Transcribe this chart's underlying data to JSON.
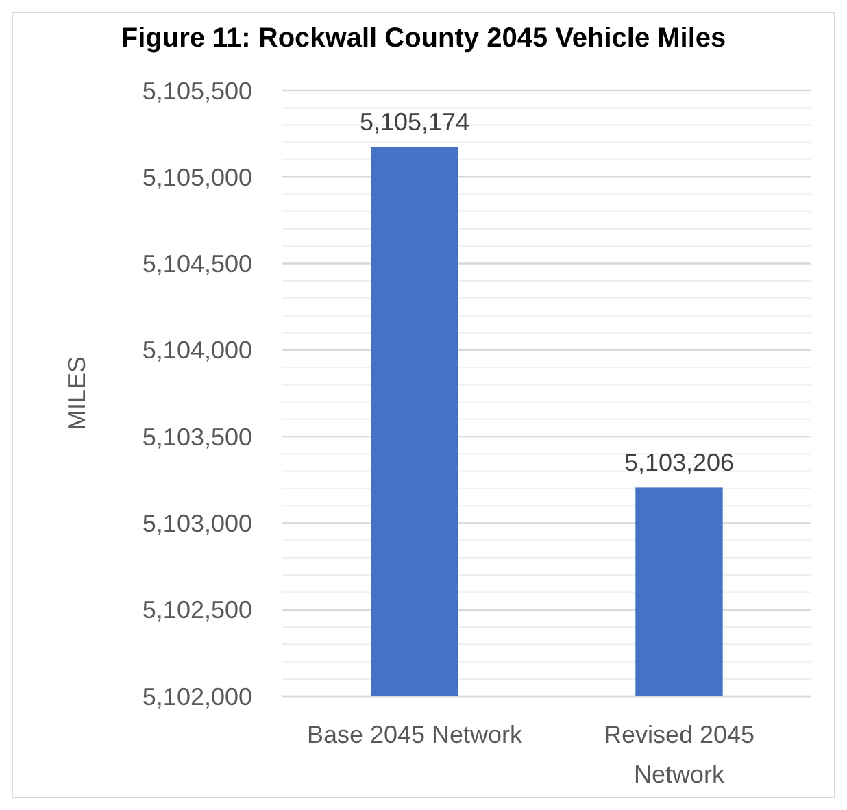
{
  "chart_data": {
    "type": "bar",
    "title": "Figure 11: Rockwall County 2045 Vehicle Miles",
    "ylabel": "MILES",
    "categories": [
      "Base 2045 Network",
      "Revised 2045 Network"
    ],
    "values": [
      5105174,
      5103206
    ],
    "value_labels": [
      "5,105,174",
      "5,103,206"
    ],
    "color": "#4472c4",
    "grid": true,
    "ylim": [
      5102000,
      5105500
    ],
    "yticks": [
      {
        "value": 5102000,
        "label": "5,102,000"
      },
      {
        "value": 5102100,
        "label": null
      },
      {
        "value": 5102200,
        "label": null
      },
      {
        "value": 5102300,
        "label": null
      },
      {
        "value": 5102400,
        "label": null
      },
      {
        "value": 5102500,
        "label": "5,102,500"
      },
      {
        "value": 5102600,
        "label": null
      },
      {
        "value": 5102700,
        "label": null
      },
      {
        "value": 5102800,
        "label": null
      },
      {
        "value": 5102900,
        "label": null
      },
      {
        "value": 5103000,
        "label": "5,103,000"
      },
      {
        "value": 5103100,
        "label": null
      },
      {
        "value": 5103200,
        "label": null
      },
      {
        "value": 5103300,
        "label": null
      },
      {
        "value": 5103400,
        "label": null
      },
      {
        "value": 5103500,
        "label": "5,103,500"
      },
      {
        "value": 5103600,
        "label": null
      },
      {
        "value": 5103700,
        "label": null
      },
      {
        "value": 5103800,
        "label": null
      },
      {
        "value": 5103900,
        "label": null
      },
      {
        "value": 5104000,
        "label": "5,104,000"
      },
      {
        "value": 5104100,
        "label": null
      },
      {
        "value": 5104200,
        "label": null
      },
      {
        "value": 5104300,
        "label": null
      },
      {
        "value": 5104400,
        "label": null
      },
      {
        "value": 5104500,
        "label": "5,104,500"
      },
      {
        "value": 5104600,
        "label": null
      },
      {
        "value": 5104700,
        "label": null
      },
      {
        "value": 5104800,
        "label": null
      },
      {
        "value": 5104900,
        "label": null
      },
      {
        "value": 5105000,
        "label": "5,105,000"
      },
      {
        "value": 5105100,
        "label": null
      },
      {
        "value": 5105200,
        "label": null
      },
      {
        "value": 5105300,
        "label": null
      },
      {
        "value": 5105400,
        "label": null
      },
      {
        "value": 5105500,
        "label": "5,105,500"
      }
    ]
  }
}
